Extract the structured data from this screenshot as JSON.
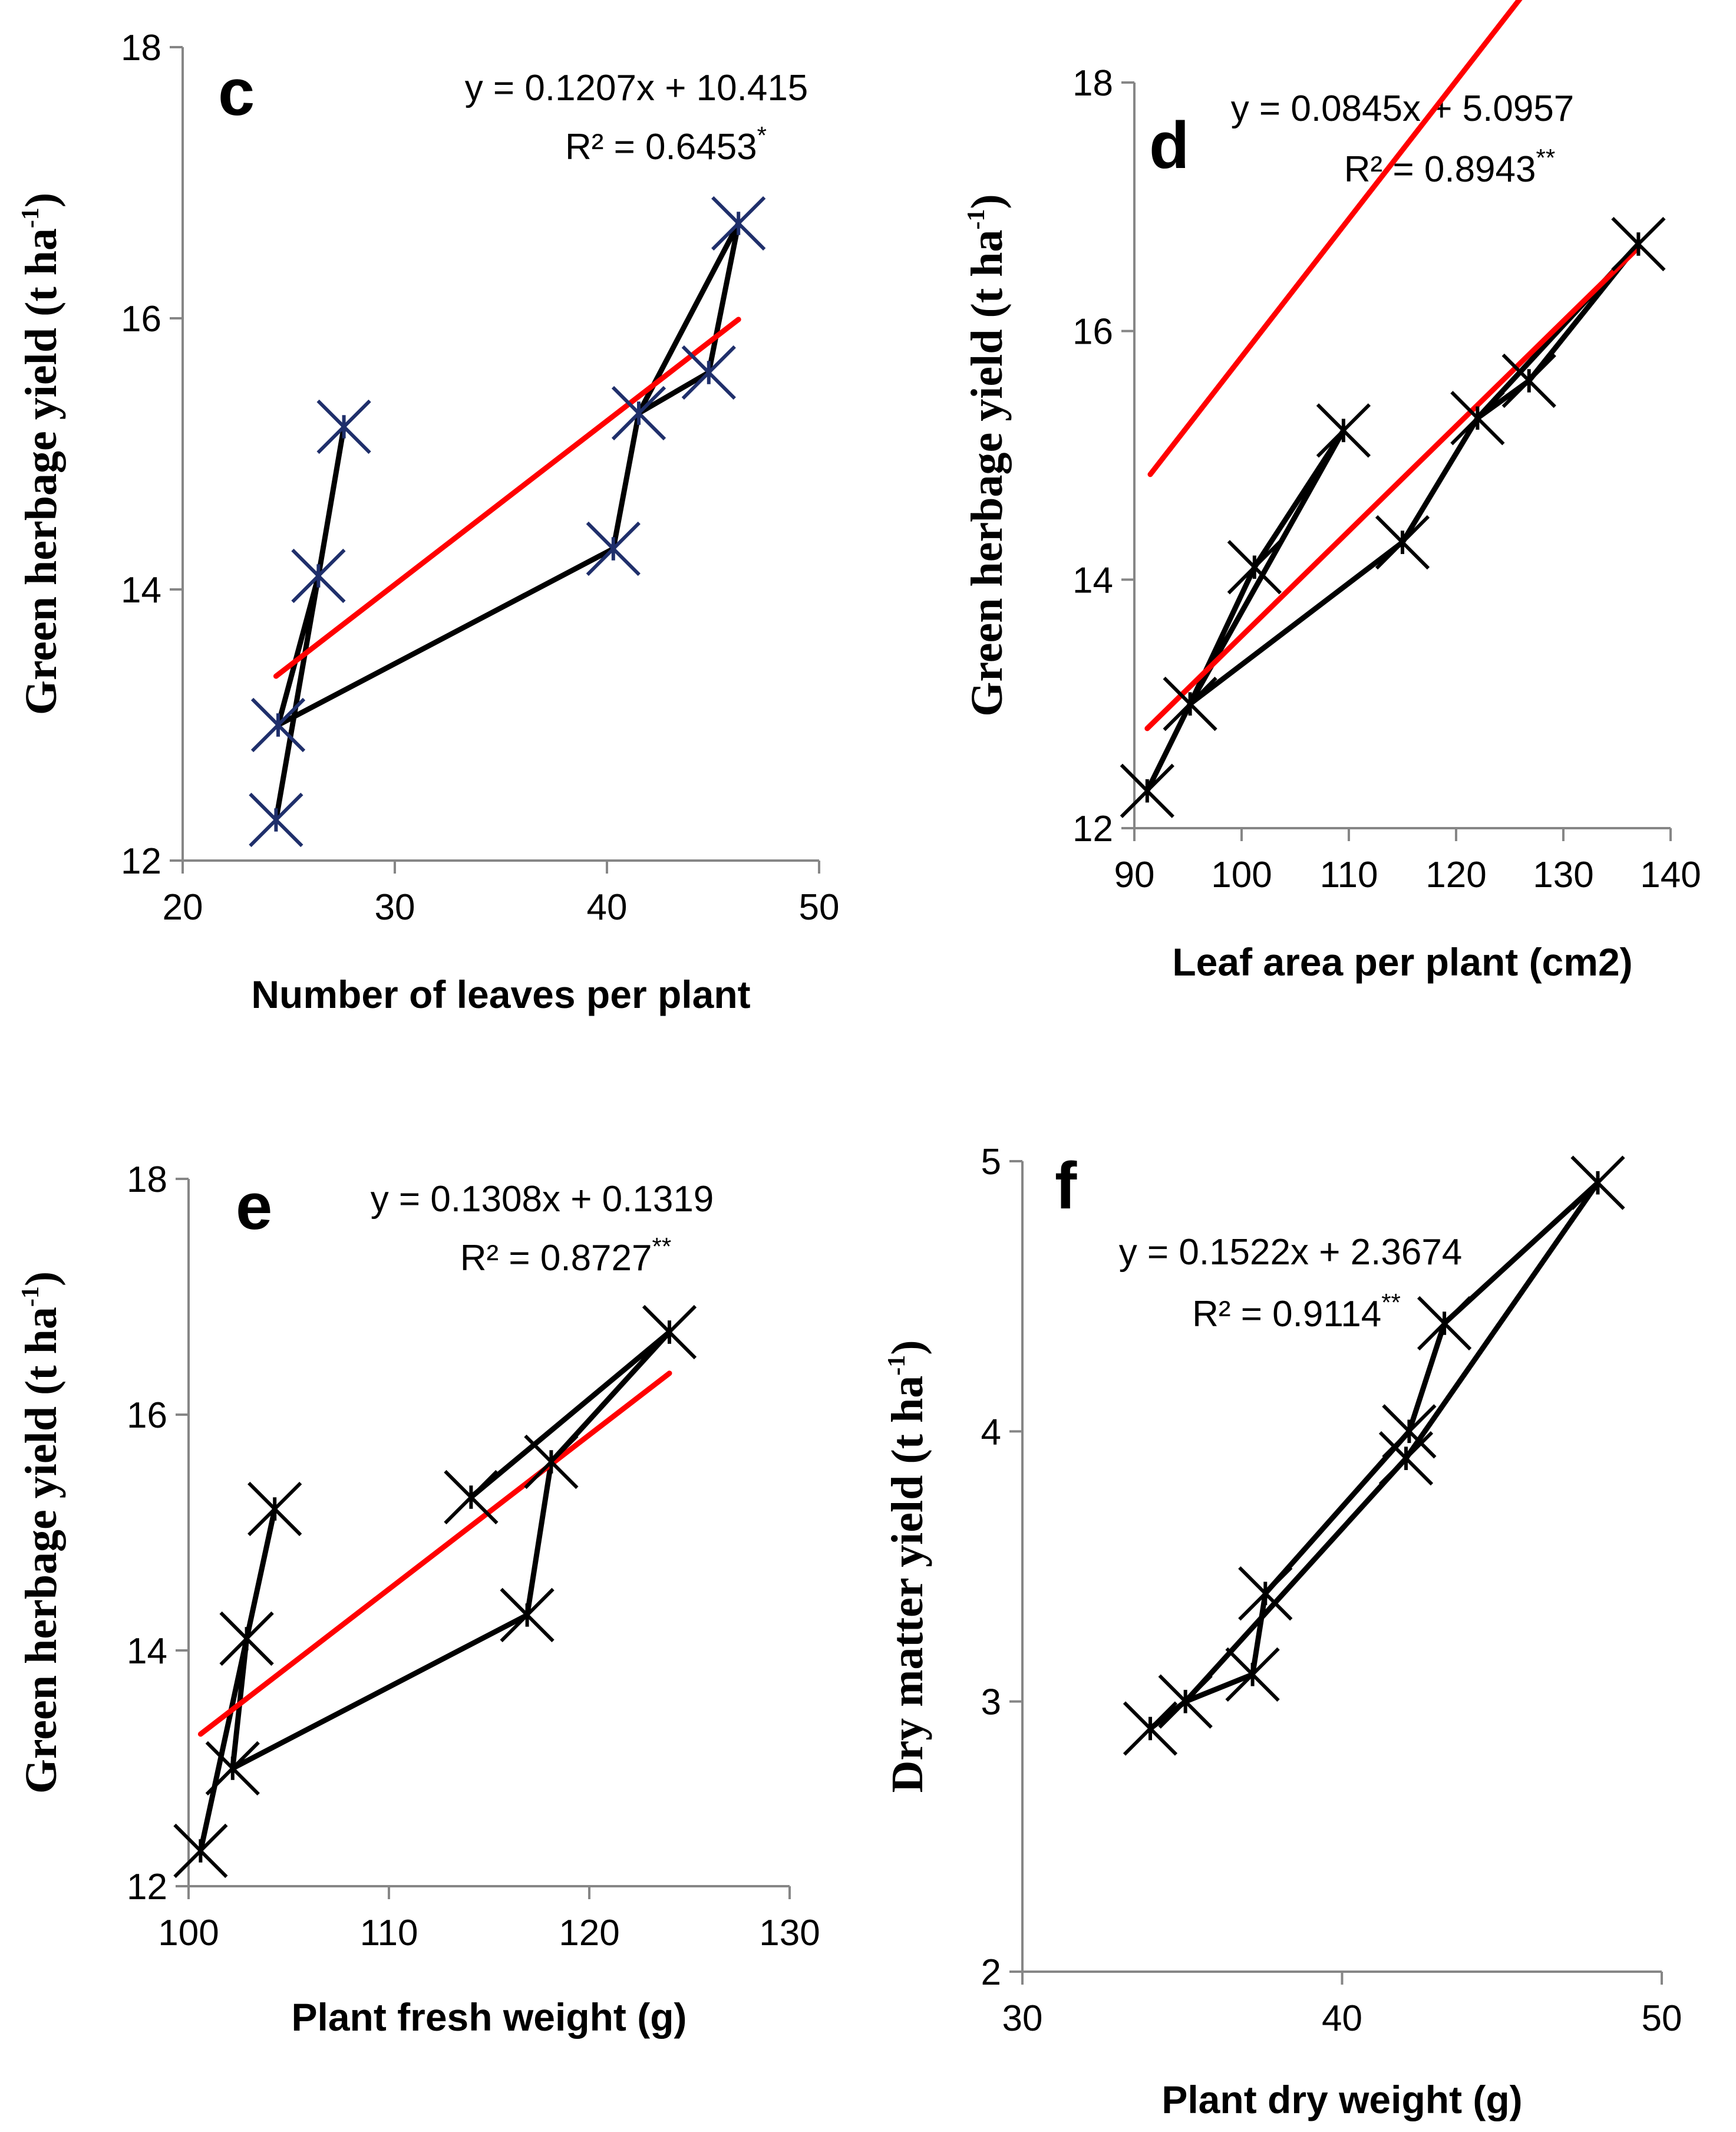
{
  "chart_data": [
    {
      "type": "scatter",
      "panel": "c",
      "title": "",
      "xlabel": "Number of leaves per plant",
      "ylabel_main": "Green herbage yield (t ha",
      "ylabel_sup": "-1",
      "ylabel_end": ")",
      "xlim": [
        20,
        50
      ],
      "ylim": [
        12,
        18
      ],
      "xticks": [
        20,
        30,
        40,
        50
      ],
      "yticks": [
        12,
        14,
        16,
        18
      ],
      "marker_color": "#1f2f6b",
      "connect_color": "#000000",
      "trend_color": "#ff0000",
      "x": [
        24.4,
        24.5,
        26.4,
        27.6,
        40.3,
        41.5,
        44.8,
        46.2
      ],
      "y": [
        12.3,
        13.0,
        14.1,
        15.2,
        14.3,
        15.3,
        15.6,
        16.7
      ],
      "path_order": [
        0,
        2,
        3,
        2,
        1,
        4,
        5,
        7,
        6,
        5
      ],
      "trendline": {
        "slope": 0.1207,
        "intercept": 10.415,
        "x_range": [
          24.4,
          46.2
        ]
      },
      "equation": "y = 0.1207x + 10.415",
      "r2_text": "R² = 0.6453",
      "r2_sig": "*"
    },
    {
      "type": "scatter",
      "panel": "d",
      "title": "",
      "xlabel": "Leaf area per plant (cm2)",
      "ylabel_main": "Green herbage yield (t ha",
      "ylabel_sup": "-1",
      "ylabel_end": ")",
      "xlim": [
        90,
        140
      ],
      "ylim": [
        12,
        18
      ],
      "xticks": [
        90,
        100,
        110,
        120,
        130,
        140
      ],
      "yticks": [
        12,
        14,
        16,
        18
      ],
      "marker_color": "#000000",
      "connect_color": "#000000",
      "trend_color": "#ff0000",
      "x": [
        91.2,
        95.2,
        101.2,
        109.5,
        115.0,
        122.0,
        126.8,
        137.0
      ],
      "y": [
        12.3,
        13.0,
        14.1,
        15.2,
        14.3,
        15.3,
        15.6,
        16.7
      ],
      "path_order": [
        0,
        1,
        2,
        3,
        1,
        4,
        5,
        7,
        6,
        5
      ],
      "trendline": {
        "slope": 0.0845,
        "intercept": 5.0957,
        "x_range": [
          91.2,
          137.0
        ]
      },
      "equation": "y = 0.0845x + 5.0957",
      "r2_text": "R² = 0.8943",
      "r2_sig": "**"
    },
    {
      "type": "scatter",
      "panel": "e",
      "title": "",
      "xlabel": "Plant fresh weight (g)",
      "ylabel_main": "Green herbage yield (t ha",
      "ylabel_sup": "-1",
      "ylabel_end": ")",
      "xlim": [
        100,
        130
      ],
      "ylim": [
        12,
        18
      ],
      "xticks": [
        100,
        110,
        120,
        130
      ],
      "yticks": [
        12,
        14,
        16,
        18
      ],
      "marker_color": "#000000",
      "connect_color": "#000000",
      "trend_color": "#ff0000",
      "x": [
        100.6,
        102.2,
        102.9,
        104.3,
        114.1,
        116.9,
        118.1,
        124.0
      ],
      "y": [
        12.3,
        13.0,
        14.1,
        15.2,
        15.3,
        14.3,
        15.6,
        16.7
      ],
      "path_order": [
        0,
        2,
        3,
        2,
        1,
        5,
        6,
        7,
        4
      ],
      "trendline": {
        "slope": 0.1308,
        "intercept": 0.1319,
        "x_range": [
          100.6,
          124.0
        ]
      },
      "equation": "y = 0.1308x + 0.1319",
      "r2_text": "R² = 0.8727",
      "r2_sig": "**"
    },
    {
      "type": "scatter",
      "panel": "f",
      "title": "",
      "xlabel": "Plant dry weight (g)",
      "ylabel_main": "Dry matter yield (t ha",
      "ylabel_sup": "-1",
      "ylabel_end": ")",
      "xlim": [
        30,
        50
      ],
      "ylim": [
        2,
        5
      ],
      "xticks": [
        30,
        40,
        50
      ],
      "yticks": [
        2,
        3,
        4,
        5
      ],
      "marker_color": "#000000",
      "connect_color": "#000000",
      "trend_color": "#ff0000",
      "x": [
        34.0,
        35.1,
        37.2,
        37.6,
        42.0,
        42.1,
        43.2,
        48.0
      ],
      "y": [
        2.9,
        3.0,
        3.1,
        3.4,
        3.9,
        4.0,
        4.4,
        4.92
      ],
      "path_order": [
        0,
        1,
        2,
        3,
        5,
        6,
        7,
        4,
        1
      ],
      "trendline": {
        "slope": 0.1522,
        "intercept": 2.3674,
        "x_range": [
          34.0,
          48.0
        ]
      },
      "equation": "y = 0.1522x + 2.3674",
      "r2_text": "R² = 0.9114",
      "r2_sig": "**"
    }
  ]
}
